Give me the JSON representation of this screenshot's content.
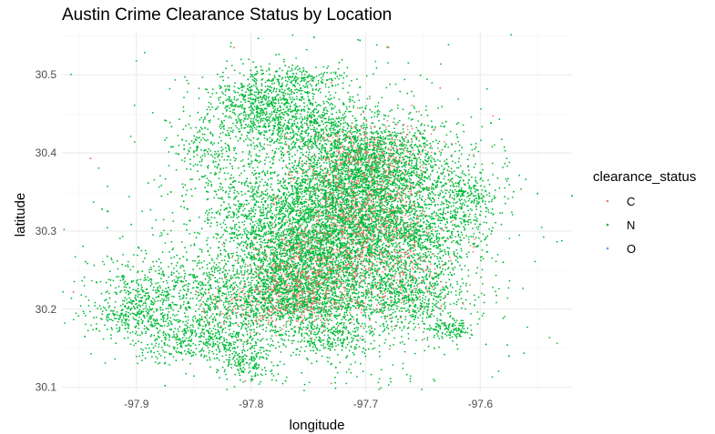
{
  "chart_data": {
    "type": "scatter",
    "title": "Austin Crime Clearance Status by Location",
    "xlabel": "longitude",
    "ylabel": "latitude",
    "xlim": [
      -97.965,
      -97.52
    ],
    "ylim": [
      30.095,
      30.555
    ],
    "x_ticks": [
      -97.9,
      -97.8,
      -97.7,
      -97.6
    ],
    "x_tick_labels": [
      "-97.9",
      "-97.8",
      "-97.7",
      "-97.6"
    ],
    "y_ticks": [
      30.1,
      30.2,
      30.3,
      30.4,
      30.5
    ],
    "y_tick_labels": [
      "30.1",
      "30.2",
      "30.3",
      "30.4",
      "30.5"
    ],
    "grid": true,
    "legend": {
      "title": "clearance_status",
      "position": "right",
      "entries": [
        {
          "label": "C",
          "color": "#f8766d"
        },
        {
          "label": "N",
          "color": "#00ba38"
        },
        {
          "label": "O",
          "color": "#619cff"
        }
      ]
    },
    "series": [
      {
        "name": "N",
        "color": "#00ba38",
        "clusters": [
          {
            "cx": -97.71,
            "cy": 30.345,
            "sx": 0.035,
            "sy": 0.045,
            "n": 2600
          },
          {
            "cx": -97.75,
            "cy": 30.27,
            "sx": 0.035,
            "sy": 0.035,
            "n": 1900
          },
          {
            "cx": -97.77,
            "cy": 30.215,
            "sx": 0.04,
            "sy": 0.025,
            "n": 1500
          },
          {
            "cx": -97.69,
            "cy": 30.39,
            "sx": 0.035,
            "sy": 0.025,
            "n": 900
          },
          {
            "cx": -97.76,
            "cy": 30.44,
            "sx": 0.035,
            "sy": 0.02,
            "n": 700
          },
          {
            "cx": -97.79,
            "cy": 30.47,
            "sx": 0.025,
            "sy": 0.02,
            "n": 500
          },
          {
            "cx": -97.755,
            "cy": 30.495,
            "sx": 0.02,
            "sy": 0.008,
            "n": 140
          },
          {
            "cx": -97.84,
            "cy": 30.16,
            "sx": 0.03,
            "sy": 0.015,
            "n": 500
          },
          {
            "cx": -97.88,
            "cy": 30.22,
            "sx": 0.03,
            "sy": 0.025,
            "n": 500
          },
          {
            "cx": -97.9,
            "cy": 30.19,
            "sx": 0.02,
            "sy": 0.012,
            "n": 220
          },
          {
            "cx": -97.66,
            "cy": 30.29,
            "sx": 0.025,
            "sy": 0.03,
            "n": 700
          },
          {
            "cx": -97.66,
            "cy": 30.215,
            "sx": 0.025,
            "sy": 0.02,
            "n": 500
          },
          {
            "cx": -97.8,
            "cy": 30.325,
            "sx": 0.025,
            "sy": 0.03,
            "n": 400
          },
          {
            "cx": -97.84,
            "cy": 30.4,
            "sx": 0.015,
            "sy": 0.02,
            "n": 150
          },
          {
            "cx": -97.62,
            "cy": 30.33,
            "sx": 0.02,
            "sy": 0.03,
            "n": 250
          },
          {
            "cx": -97.625,
            "cy": 30.175,
            "sx": 0.01,
            "sy": 0.006,
            "n": 120
          },
          {
            "cx": -97.61,
            "cy": 30.35,
            "sx": 0.01,
            "sy": 0.012,
            "n": 100
          },
          {
            "cx": -97.8,
            "cy": 30.13,
            "sx": 0.012,
            "sy": 0.012,
            "n": 150
          },
          {
            "cx": -97.73,
            "cy": 30.16,
            "sx": 0.02,
            "sy": 0.012,
            "n": 200
          },
          {
            "cx": -97.72,
            "cy": 30.29,
            "sx": 0.06,
            "sy": 0.09,
            "n": 1400
          },
          {
            "cx": -97.74,
            "cy": 30.31,
            "sx": 0.09,
            "sy": 0.11,
            "n": 600
          }
        ]
      },
      {
        "name": "C",
        "color": "#f8766d",
        "clusters": [
          {
            "cx": -97.71,
            "cy": 30.33,
            "sx": 0.03,
            "sy": 0.05,
            "n": 650
          },
          {
            "cx": -97.75,
            "cy": 30.25,
            "sx": 0.03,
            "sy": 0.03,
            "n": 350
          },
          {
            "cx": -97.77,
            "cy": 30.21,
            "sx": 0.035,
            "sy": 0.02,
            "n": 250
          },
          {
            "cx": -97.66,
            "cy": 30.26,
            "sx": 0.025,
            "sy": 0.04,
            "n": 180
          },
          {
            "cx": -97.69,
            "cy": 30.4,
            "sx": 0.03,
            "sy": 0.02,
            "n": 140
          }
        ],
        "points": [
          [
            -97.955,
            30.222
          ],
          [
            -97.94,
            30.393
          ],
          [
            -97.815,
            30.535
          ],
          [
            -97.68,
            30.535
          ],
          [
            -97.73,
            30.105
          ],
          [
            -97.635,
            30.483
          ],
          [
            -97.73,
            30.49
          ],
          [
            -97.805,
            30.108
          ]
        ]
      },
      {
        "name": "O",
        "color": "#619cff",
        "points": [
          [
            -97.72,
            30.34
          ],
          [
            -97.75,
            30.27
          ]
        ]
      }
    ],
    "outliers_n": [
      [
        -97.745,
        30.548
      ],
      [
        -97.705,
        30.544
      ],
      [
        -97.52,
        30.345
      ],
      [
        -97.55,
        30.348
      ],
      [
        -97.575,
        30.14
      ],
      [
        -97.58,
        30.26
      ],
      [
        -97.93,
        30.328
      ],
      [
        -97.925,
        30.325
      ],
      [
        -97.875,
        30.102
      ],
      [
        -97.945,
        30.165
      ],
      [
        -97.6,
        30.375
      ],
      [
        -97.59,
        30.3
      ],
      [
        -97.595,
        30.155
      ],
      [
        -97.605,
        30.205
      ],
      [
        -97.64,
        30.15
      ],
      [
        -97.7,
        30.148
      ],
      [
        -97.77,
        30.108
      ],
      [
        -97.82,
        30.27
      ],
      [
        -97.87,
        30.35
      ],
      [
        -97.86,
        30.345
      ],
      [
        -97.595,
        30.33
      ],
      [
        -97.62,
        30.42
      ],
      [
        -97.63,
        30.44
      ],
      [
        -97.61,
        30.365
      ]
    ]
  }
}
